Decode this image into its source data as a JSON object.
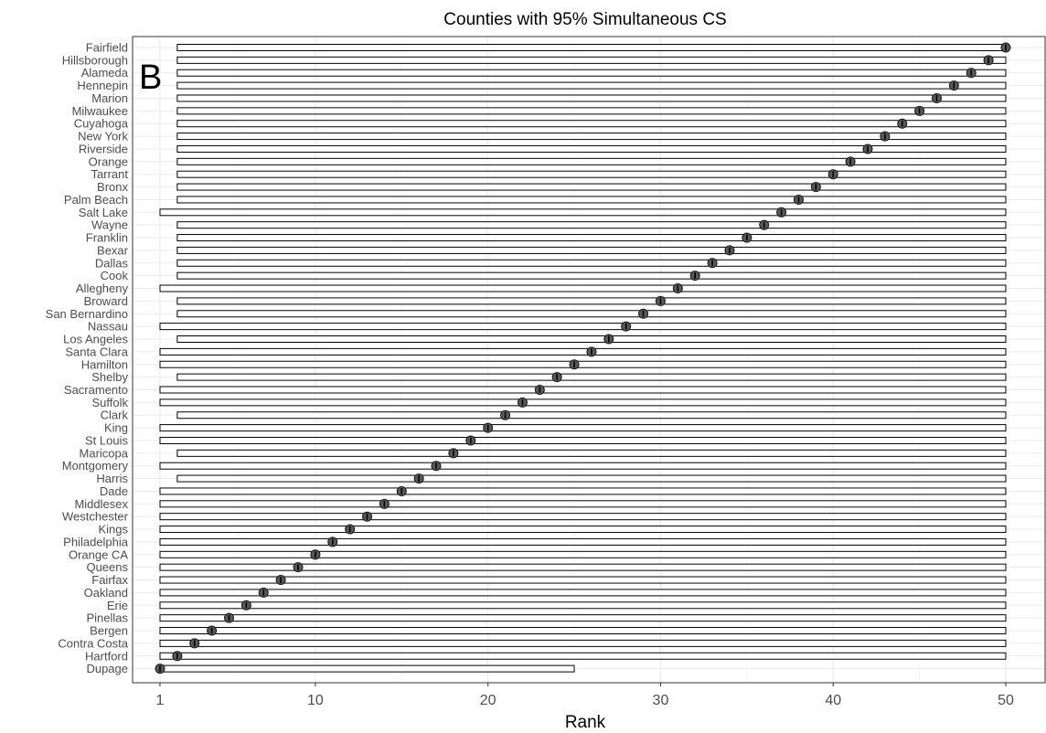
{
  "chart_data": {
    "type": "interval-rank",
    "title": "Counties with 95% Simultaneous CS",
    "xlabel": "Rank",
    "panel_label": "B",
    "xlim": [
      1,
      50
    ],
    "xticks": [
      1,
      10,
      20,
      30,
      40,
      50
    ],
    "grid": true,
    "counties": [
      {
        "name": "Fairfield",
        "rank": 50,
        "lower": 2,
        "upper": 50
      },
      {
        "name": "Hillsborough",
        "rank": 49,
        "lower": 2,
        "upper": 50
      },
      {
        "name": "Alameda",
        "rank": 48,
        "lower": 2,
        "upper": 50
      },
      {
        "name": "Hennepin",
        "rank": 47,
        "lower": 2,
        "upper": 50
      },
      {
        "name": "Marion",
        "rank": 46,
        "lower": 2,
        "upper": 50
      },
      {
        "name": "Milwaukee",
        "rank": 45,
        "lower": 2,
        "upper": 50
      },
      {
        "name": "Cuyahoga",
        "rank": 44,
        "lower": 2,
        "upper": 50
      },
      {
        "name": "New York",
        "rank": 43,
        "lower": 2,
        "upper": 50
      },
      {
        "name": "Riverside",
        "rank": 42,
        "lower": 2,
        "upper": 50
      },
      {
        "name": "Orange",
        "rank": 41,
        "lower": 2,
        "upper": 50
      },
      {
        "name": "Tarrant",
        "rank": 40,
        "lower": 2,
        "upper": 50
      },
      {
        "name": "Bronx",
        "rank": 39,
        "lower": 2,
        "upper": 50
      },
      {
        "name": "Palm Beach",
        "rank": 38,
        "lower": 2,
        "upper": 50
      },
      {
        "name": "Salt Lake",
        "rank": 37,
        "lower": 1,
        "upper": 50
      },
      {
        "name": "Wayne",
        "rank": 36,
        "lower": 2,
        "upper": 50
      },
      {
        "name": "Franklin",
        "rank": 35,
        "lower": 2,
        "upper": 50
      },
      {
        "name": "Bexar",
        "rank": 34,
        "lower": 2,
        "upper": 50
      },
      {
        "name": "Dallas",
        "rank": 33,
        "lower": 2,
        "upper": 50
      },
      {
        "name": "Cook",
        "rank": 32,
        "lower": 2,
        "upper": 50
      },
      {
        "name": "Allegheny",
        "rank": 31,
        "lower": 1,
        "upper": 50
      },
      {
        "name": "Broward",
        "rank": 30,
        "lower": 2,
        "upper": 50
      },
      {
        "name": "San Bernardino",
        "rank": 29,
        "lower": 2,
        "upper": 50
      },
      {
        "name": "Nassau",
        "rank": 28,
        "lower": 1,
        "upper": 50
      },
      {
        "name": "Los Angeles",
        "rank": 27,
        "lower": 2,
        "upper": 50
      },
      {
        "name": "Santa Clara",
        "rank": 26,
        "lower": 1,
        "upper": 50
      },
      {
        "name": "Hamilton",
        "rank": 25,
        "lower": 1,
        "upper": 50
      },
      {
        "name": "Shelby",
        "rank": 24,
        "lower": 2,
        "upper": 50
      },
      {
        "name": "Sacramento",
        "rank": 23,
        "lower": 1,
        "upper": 50
      },
      {
        "name": "Suffolk",
        "rank": 22,
        "lower": 1,
        "upper": 50
      },
      {
        "name": "Clark",
        "rank": 21,
        "lower": 2,
        "upper": 50
      },
      {
        "name": "King",
        "rank": 20,
        "lower": 1,
        "upper": 50
      },
      {
        "name": "St Louis",
        "rank": 19,
        "lower": 1,
        "upper": 50
      },
      {
        "name": "Maricopa",
        "rank": 18,
        "lower": 2,
        "upper": 50
      },
      {
        "name": "Montgomery",
        "rank": 17,
        "lower": 1,
        "upper": 50
      },
      {
        "name": "Harris",
        "rank": 16,
        "lower": 2,
        "upper": 50
      },
      {
        "name": "Dade",
        "rank": 15,
        "lower": 1,
        "upper": 50
      },
      {
        "name": "Middlesex",
        "rank": 14,
        "lower": 1,
        "upper": 50
      },
      {
        "name": "Westchester",
        "rank": 13,
        "lower": 1,
        "upper": 50
      },
      {
        "name": "Kings",
        "rank": 12,
        "lower": 1,
        "upper": 50
      },
      {
        "name": "Philadelphia",
        "rank": 11,
        "lower": 1,
        "upper": 50
      },
      {
        "name": "Orange CA",
        "rank": 10,
        "lower": 1,
        "upper": 50
      },
      {
        "name": "Queens",
        "rank": 9,
        "lower": 1,
        "upper": 50
      },
      {
        "name": "Fairfax",
        "rank": 8,
        "lower": 1,
        "upper": 50
      },
      {
        "name": "Oakland",
        "rank": 7,
        "lower": 1,
        "upper": 50
      },
      {
        "name": "Erie",
        "rank": 6,
        "lower": 1,
        "upper": 50
      },
      {
        "name": "Pinellas",
        "rank": 5,
        "lower": 1,
        "upper": 50
      },
      {
        "name": "Bergen",
        "rank": 4,
        "lower": 1,
        "upper": 50
      },
      {
        "name": "Contra Costa",
        "rank": 3,
        "lower": 1,
        "upper": 50
      },
      {
        "name": "Hartford",
        "rank": 2,
        "lower": 1,
        "upper": 50
      },
      {
        "name": "Dupage",
        "rank": 1,
        "lower": 1,
        "upper": 25
      }
    ]
  },
  "colors": {
    "point_fill": "#595959",
    "point_stroke": "#1a1a1a",
    "interval_fill": "#ffffff",
    "interval_stroke": "#000000",
    "grid_major": "#ebebeb",
    "grid_minor": "#f5f5f5",
    "panel_border": "#333333",
    "text": "#4d4d4d"
  }
}
